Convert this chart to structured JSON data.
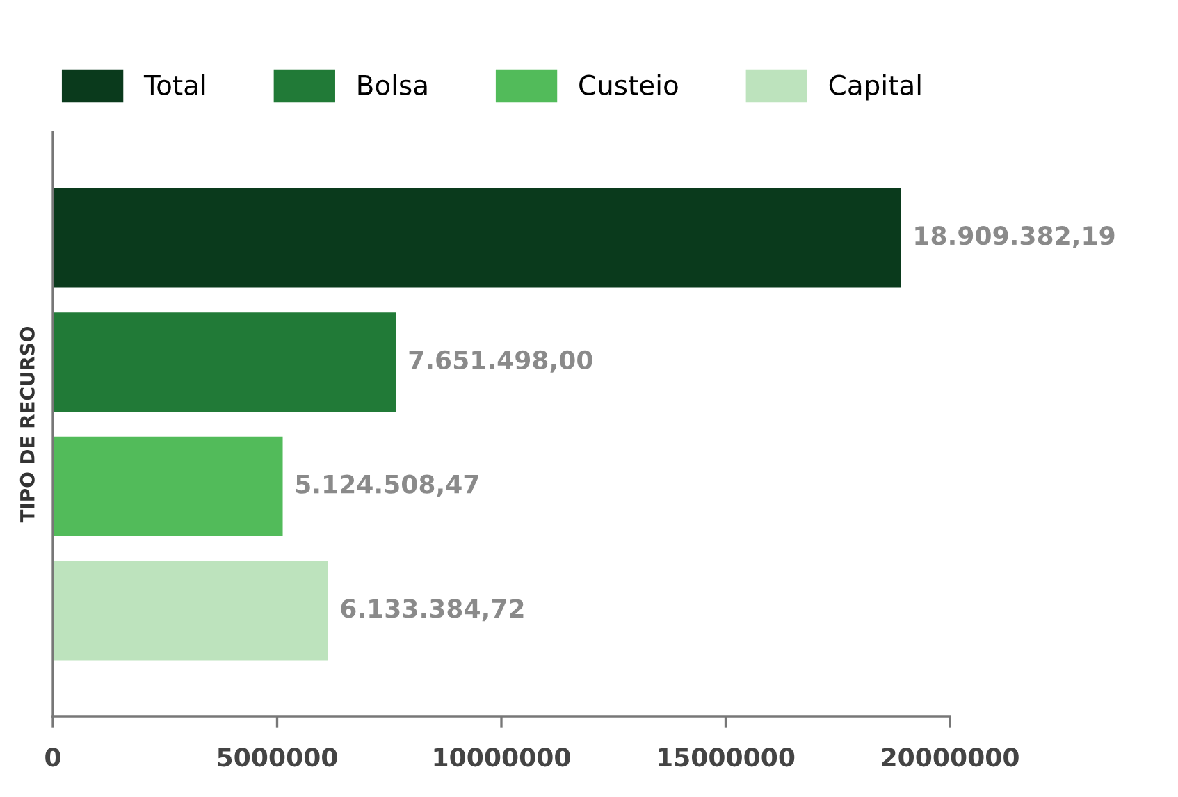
{
  "chart_data": {
    "type": "bar",
    "orientation": "horizontal",
    "ylabel": "TIPO DE RECURSO",
    "categories": [
      null,
      null,
      null,
      null
    ],
    "series": [
      {
        "name": "Total",
        "color": "#0a3a1c",
        "values": [
          18909382.19,
          null,
          null,
          null
        ],
        "value_labels": [
          "18.909.382,19",
          null,
          null,
          null
        ]
      },
      {
        "name": "Bolsa",
        "color": "#217a37",
        "values": [
          null,
          7651498.0,
          null,
          null
        ],
        "value_labels": [
          null,
          "7.651.498,00",
          null,
          null
        ]
      },
      {
        "name": "Custeio",
        "color": "#52bb5a",
        "values": [
          null,
          null,
          5124508.47,
          null
        ],
        "value_labels": [
          null,
          null,
          "5.124.508,47",
          null
        ]
      },
      {
        "name": "Capital",
        "color": "#bde3bd",
        "values": [
          null,
          null,
          null,
          6133384.72
        ],
        "value_labels": [
          null,
          null,
          null,
          "6.133.384,72"
        ]
      }
    ],
    "xlim": [
      0,
      20000000
    ],
    "xticks": [
      0,
      5000000,
      10000000,
      15000000,
      20000000
    ],
    "grid": false,
    "legend": "top left"
  }
}
